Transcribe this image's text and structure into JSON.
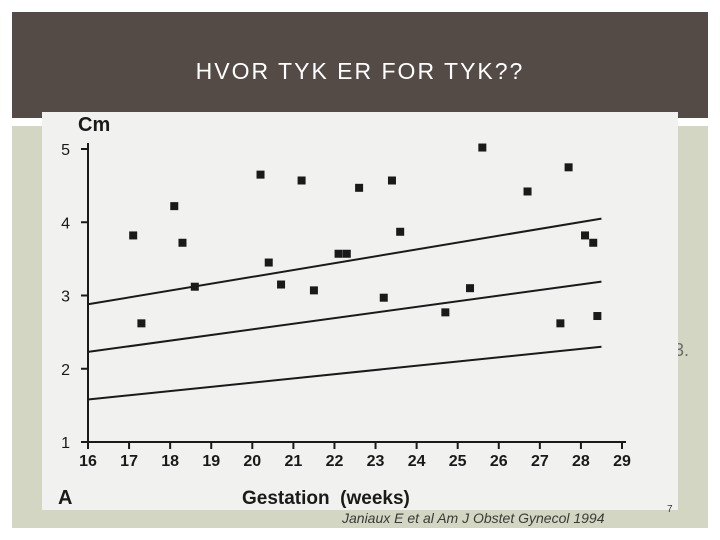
{
  "slide": {
    "title": "HVOR TYK ER FOR TYK??",
    "citation": "Janiaux E et al Am J Obstet Gynecol 1994",
    "page_number": "7",
    "side_glyph": "3."
  },
  "colors": {
    "title_band": "#544b47",
    "body_panel": "#d3d6c2",
    "scan_background": "#f1f1ef",
    "ink": "#1a1a1a"
  },
  "chart_data": {
    "type": "scatter",
    "ylabel": "Cm",
    "xlabel": "Gestation  (weeks)",
    "panel_label": "A",
    "xlim": [
      16,
      29
    ],
    "ylim": [
      1,
      5
    ],
    "x_ticks": [
      16,
      17,
      18,
      19,
      20,
      21,
      22,
      23,
      24,
      25,
      26,
      27,
      28,
      29
    ],
    "y_ticks": [
      1,
      2,
      3,
      4,
      5
    ],
    "grid": false,
    "points": [
      {
        "x": 17.1,
        "y": 3.82
      },
      {
        "x": 17.3,
        "y": 2.62
      },
      {
        "x": 18.1,
        "y": 4.22
      },
      {
        "x": 18.3,
        "y": 3.72
      },
      {
        "x": 18.6,
        "y": 3.12
      },
      {
        "x": 20.2,
        "y": 4.65
      },
      {
        "x": 20.4,
        "y": 3.45
      },
      {
        "x": 20.7,
        "y": 3.15
      },
      {
        "x": 21.2,
        "y": 4.57
      },
      {
        "x": 21.5,
        "y": 3.07
      },
      {
        "x": 22.1,
        "y": 3.57
      },
      {
        "x": 22.3,
        "y": 3.57
      },
      {
        "x": 22.6,
        "y": 4.47
      },
      {
        "x": 23.2,
        "y": 2.97
      },
      {
        "x": 23.4,
        "y": 4.57
      },
      {
        "x": 23.6,
        "y": 3.87
      },
      {
        "x": 24.7,
        "y": 2.77
      },
      {
        "x": 25.3,
        "y": 3.1
      },
      {
        "x": 25.6,
        "y": 5.02
      },
      {
        "x": 26.7,
        "y": 4.42
      },
      {
        "x": 27.5,
        "y": 2.62
      },
      {
        "x": 27.7,
        "y": 4.75
      },
      {
        "x": 28.1,
        "y": 3.82
      },
      {
        "x": 28.3,
        "y": 3.72
      },
      {
        "x": 28.4,
        "y": 2.72
      }
    ],
    "lines": [
      {
        "x": [
          16,
          28.5
        ],
        "y": [
          2.88,
          4.05
        ]
      },
      {
        "x": [
          16,
          28.5
        ],
        "y": [
          2.23,
          3.19
        ]
      },
      {
        "x": [
          16,
          28.5
        ],
        "y": [
          1.58,
          2.3
        ]
      }
    ]
  }
}
